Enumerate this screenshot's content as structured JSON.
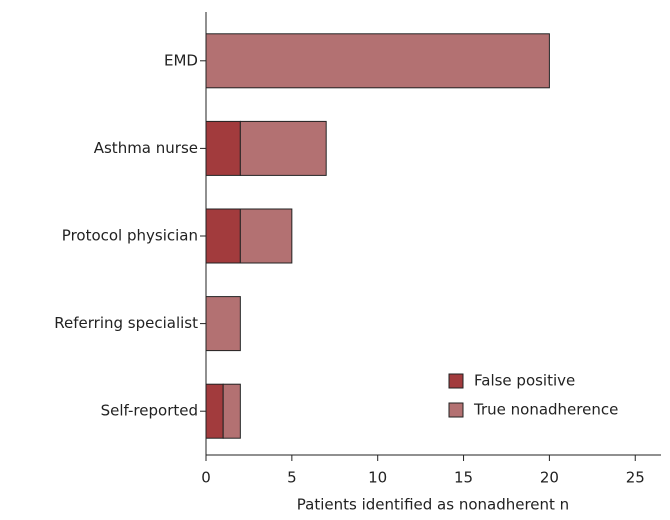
{
  "chart_data": {
    "type": "stacked_barh",
    "categories": [
      "EMD",
      "Asthma nurse",
      "Protocol physician",
      "Referring specialist",
      "Self-reported"
    ],
    "series": [
      {
        "name": "False positive",
        "color": "#a23b3d",
        "values": [
          0,
          2,
          2,
          0,
          1
        ]
      },
      {
        "name": "True nonadherence",
        "color": "#b37172",
        "values": [
          20,
          5,
          3,
          2,
          1
        ]
      }
    ],
    "xlabel": "Patients identified as nonadherent n",
    "xlim": [
      0,
      26.5
    ],
    "xticks": [
      0,
      5,
      10,
      15,
      20,
      25
    ],
    "legend": "lower right"
  }
}
